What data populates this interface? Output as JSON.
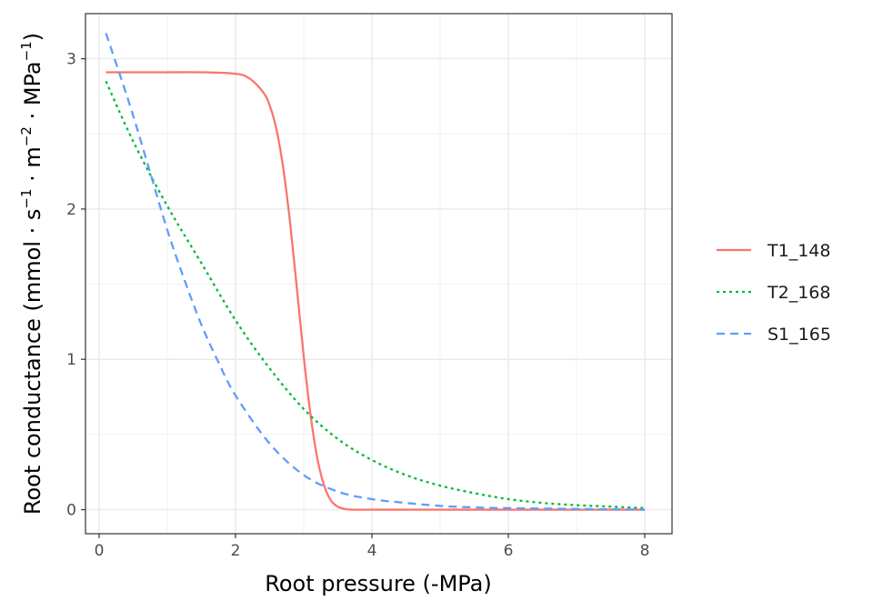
{
  "chart_data": {
    "type": "line",
    "xlabel": "Root pressure (-MPa)",
    "ylabel_main": "Root conductance",
    "ylabel_unit": {
      "open": "(mmol",
      "s": "s",
      "s_exp": "−1",
      "m": "m",
      "m_exp": "−2",
      "mpa": "MPa",
      "mpa_exp": "−1",
      "close": ")"
    },
    "xlim": [
      -0.2,
      8.4
    ],
    "ylim": [
      -0.16,
      3.3
    ],
    "x_ticks": [
      0,
      2,
      4,
      6,
      8
    ],
    "y_ticks": [
      0,
      1,
      2,
      3
    ],
    "grid": true,
    "legend_position": "right",
    "series": [
      {
        "name": "T1_148",
        "color": "#F8766D",
        "dash": "solid",
        "x": [
          0.1,
          0.5,
          1.0,
          1.5,
          2.0,
          2.2,
          2.4,
          2.5,
          2.6,
          2.7,
          2.8,
          2.9,
          3.0,
          3.1,
          3.2,
          3.3,
          3.4,
          3.5,
          3.6,
          3.7,
          4.0,
          5.0,
          6.0,
          7.0,
          8.0
        ],
        "y": [
          2.91,
          2.91,
          2.91,
          2.91,
          2.9,
          2.87,
          2.78,
          2.69,
          2.53,
          2.27,
          1.91,
          1.47,
          1.02,
          0.63,
          0.34,
          0.16,
          0.06,
          0.02,
          0.005,
          0.0,
          0.0,
          0.0,
          0.0,
          0.0,
          0.0
        ]
      },
      {
        "name": "T2_168",
        "color": "#00BA38",
        "dash": "dotted",
        "x": [
          0.1,
          0.5,
          1.0,
          1.5,
          2.0,
          2.5,
          3.0,
          3.5,
          4.0,
          4.5,
          5.0,
          5.5,
          6.0,
          6.5,
          7.0,
          7.5,
          8.0
        ],
        "y": [
          2.85,
          2.45,
          2.02,
          1.64,
          1.26,
          0.94,
          0.67,
          0.47,
          0.33,
          0.23,
          0.16,
          0.11,
          0.07,
          0.045,
          0.03,
          0.02,
          0.01
        ]
      },
      {
        "name": "S1_165",
        "color": "#619CFF",
        "dash": "dashed",
        "x": [
          0.1,
          0.3,
          0.5,
          0.75,
          1.0,
          1.25,
          1.5,
          1.75,
          2.0,
          2.5,
          3.0,
          3.5,
          4.0,
          4.5,
          5.0,
          5.5,
          6.0,
          7.0,
          8.0
        ],
        "y": [
          3.17,
          2.9,
          2.62,
          2.24,
          1.86,
          1.53,
          1.23,
          0.98,
          0.76,
          0.44,
          0.23,
          0.12,
          0.07,
          0.045,
          0.025,
          0.015,
          0.01,
          0.005,
          0.0
        ]
      }
    ]
  }
}
